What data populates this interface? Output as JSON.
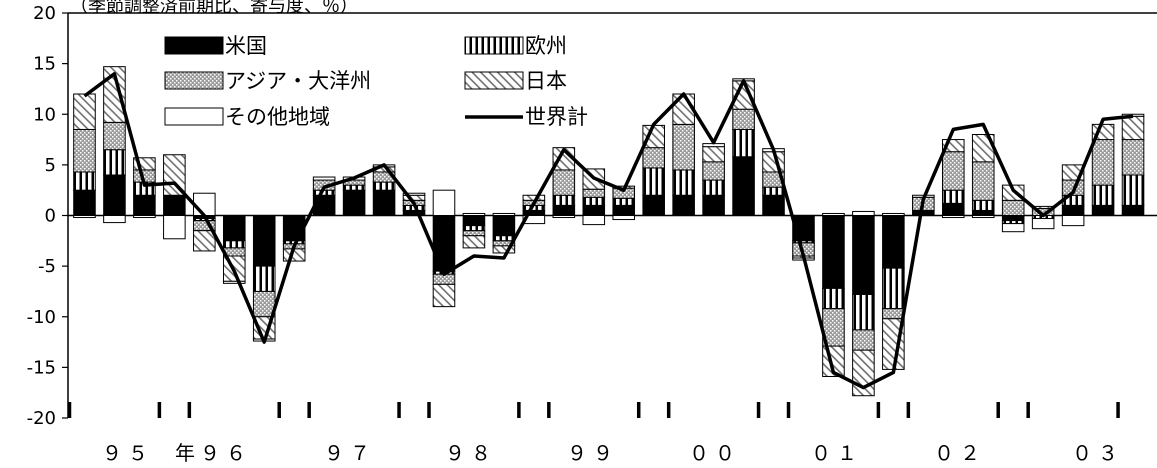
{
  "chart_data": {
    "type": "bar",
    "subtitle": "（季節調整済前期比、寄与度、％）",
    "ylim": [
      -20,
      20
    ],
    "yticks": [
      20,
      15,
      10,
      5,
      0,
      -5,
      -10,
      -15,
      -20
    ],
    "year_labels": [
      "９５",
      "年",
      "９６",
      "９７",
      "９８",
      "９９",
      "００",
      "０１",
      "０２",
      "０３"
    ],
    "legend": {
      "placement": "top-left",
      "items": [
        {
          "key": "us",
          "label": "米国"
        },
        {
          "key": "eu",
          "label": "欧州"
        },
        {
          "key": "asia",
          "label": "アジア・大洋州"
        },
        {
          "key": "jp",
          "label": "日本"
        },
        {
          "key": "other",
          "label": "その他地域"
        },
        {
          "key": "world",
          "label": "世界計"
        }
      ]
    },
    "series_keys": [
      "us",
      "eu",
      "asia",
      "jp",
      "other"
    ],
    "series": [
      {
        "name": "米国",
        "values": [
          2.5,
          4,
          2,
          2,
          -0.3,
          -2.5,
          -5,
          -2.5,
          2,
          2.5,
          2.5,
          0.5,
          -5.5,
          -1,
          -2,
          0.5,
          1,
          1,
          1,
          2,
          2,
          2,
          5.8,
          2,
          -2.5,
          -7.2,
          -7.8,
          -5.2,
          0.5,
          1.2,
          0.5,
          -0.5,
          0,
          1,
          1,
          1
        ]
      },
      {
        "name": "欧州",
        "values": [
          1.8,
          2.5,
          1.3,
          0,
          -0.2,
          -0.7,
          -2.5,
          -0.3,
          0.5,
          0.5,
          0.8,
          0.5,
          -0.3,
          -0.5,
          -0.5,
          0.5,
          1,
          0.8,
          0.7,
          2.7,
          2.5,
          1.5,
          2.7,
          0.8,
          -0.2,
          -2,
          -3.5,
          -4,
          0,
          1.3,
          1,
          -0.3,
          -0.3,
          1,
          2,
          3
        ]
      },
      {
        "name": "アジア・大洋州",
        "values": [
          4.2,
          2.7,
          1.2,
          0,
          -1,
          -0.8,
          -2.5,
          -0.5,
          1,
          0.5,
          1,
          0.5,
          -1,
          -0.5,
          -0.5,
          0.5,
          2.5,
          0.8,
          1,
          2,
          4.5,
          1.8,
          2,
          1.5,
          -1.3,
          -3.7,
          -2,
          -1,
          1.3,
          3.8,
          3.8,
          1.5,
          0.7,
          1.5,
          4.5,
          3.5
        ]
      },
      {
        "name": "日本",
        "values": [
          3.5,
          5.5,
          1.2,
          4,
          -2,
          -2.5,
          -2.2,
          -1.2,
          0,
          0,
          0.5,
          0.5,
          -2.2,
          -1.2,
          -0.7,
          0.5,
          2.2,
          2,
          0.2,
          2.2,
          3,
          1.5,
          2.8,
          2,
          -0.2,
          -3,
          -4.5,
          -5,
          0,
          1.2,
          2.7,
          1.5,
          0.2,
          1.5,
          1.5,
          2.3
        ]
      },
      {
        "name": "その他地域",
        "values": [
          -0.2,
          -0.7,
          -0.2,
          -2.3,
          2.2,
          -0.2,
          -0.2,
          0,
          0.3,
          0.3,
          0.2,
          0.2,
          2.5,
          0.2,
          0.2,
          -0.8,
          -0.2,
          -0.9,
          -0.4,
          0,
          0,
          0.3,
          0.2,
          0.3,
          -0.2,
          0.2,
          0.4,
          0.2,
          0.2,
          -0.2,
          -0.2,
          -0.8,
          -1,
          -1,
          0,
          0.2
        ]
      }
    ],
    "world": {
      "name": "世界計",
      "values": [
        11.8,
        14,
        3,
        3.2,
        0,
        -5.5,
        -12.5,
        -3,
        2.8,
        3.7,
        5,
        1.2,
        -5.8,
        -4,
        -4.2,
        1.2,
        6.5,
        3.7,
        2.5,
        9,
        12,
        7.2,
        13.3,
        6.5,
        -4,
        -15.5,
        -17,
        -15.5,
        1.6,
        8.5,
        9,
        2.5,
        0,
        2.3,
        9.5,
        9.8
      ]
    }
  }
}
